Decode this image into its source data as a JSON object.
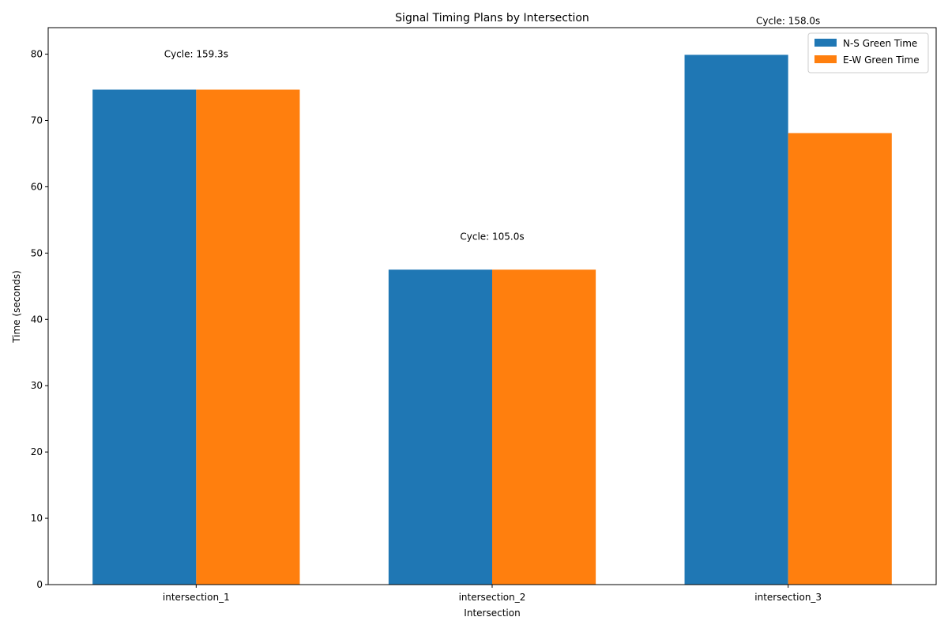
{
  "chart_data": {
    "type": "bar",
    "title": "Signal Timing Plans by Intersection",
    "xlabel": "Intersection",
    "ylabel": "Time (seconds)",
    "categories": [
      "intersection_1",
      "intersection_2",
      "intersection_3"
    ],
    "series": [
      {
        "name": "N-S Green Time",
        "color": "#1f77b4",
        "values": [
          74.65,
          47.5,
          79.9
        ]
      },
      {
        "name": "E-W Green Time",
        "color": "#ff7f0e",
        "values": [
          74.65,
          47.5,
          68.1
        ]
      }
    ],
    "annotations": [
      "Cycle: 159.3s",
      "Cycle: 105.0s",
      "Cycle: 158.0s"
    ],
    "annotation_y": [
      80,
      52.5,
      85
    ],
    "ylim": [
      0,
      84
    ],
    "yticks": [
      0,
      10,
      20,
      30,
      40,
      50,
      60,
      70,
      80
    ],
    "legend_position": "top-right",
    "grid": false
  }
}
